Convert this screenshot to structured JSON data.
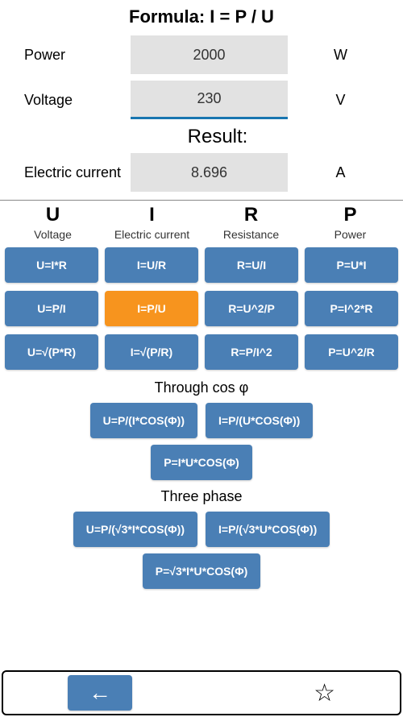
{
  "colors": {
    "button_bg": "#4a7fb5",
    "button_selected": "#f7941e",
    "input_bg": "#e2e2e2",
    "underline": "#1976b0"
  },
  "formula_title": "Formula: I = P / U",
  "inputs": [
    {
      "label": "Power",
      "value": "2000",
      "unit": "W",
      "underlined": false
    },
    {
      "label": "Voltage",
      "value": "230",
      "unit": "V",
      "underlined": true
    }
  ],
  "result_label": "Result:",
  "result": {
    "label": "Electric current",
    "value": "8.696",
    "unit": "A"
  },
  "columns": [
    {
      "symbol": "U",
      "name": "Voltage"
    },
    {
      "symbol": "I",
      "name": "Electric current"
    },
    {
      "symbol": "R",
      "name": "Resistance"
    },
    {
      "symbol": "P",
      "name": "Power"
    }
  ],
  "grid": [
    [
      "U=I*R",
      "I=U/R",
      "R=U/I",
      "P=U*I"
    ],
    [
      "U=P/I",
      "I=P/U",
      "R=U^2/P",
      "P=I^2*R"
    ],
    [
      "U=√(P*R)",
      "I=√(P/R)",
      "R=P/I^2",
      "P=U^2/R"
    ]
  ],
  "selected_formula": "I=P/U",
  "cos_section": {
    "label": "Through cos φ",
    "rows": [
      [
        "U=P/(I*COS(Φ))",
        "I=P/(U*COS(Φ))"
      ],
      [
        "P=I*U*COS(Φ)"
      ]
    ]
  },
  "three_phase_section": {
    "label": "Three phase",
    "rows": [
      [
        "U=P/(√3*I*COS(Φ))",
        "I=P/(√3*U*COS(Φ))"
      ],
      [
        "P=√3*I*U*COS(Φ)"
      ]
    ]
  }
}
